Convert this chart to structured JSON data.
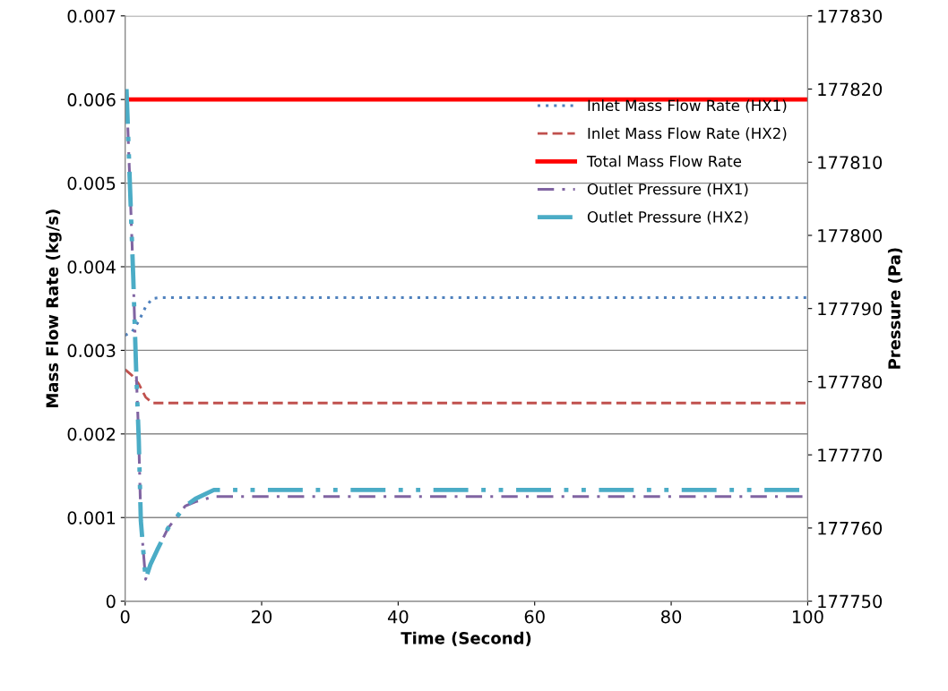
{
  "chart_data": {
    "type": "line",
    "xlabel": "Time (Second)",
    "ylabel": "Mass Flow Rate (kg/s)",
    "y2label": "Pressure (Pa)",
    "xlim": [
      0,
      100
    ],
    "xticks": [
      0,
      20,
      40,
      60,
      80,
      100
    ],
    "ylim": [
      0,
      0.007
    ],
    "yticks": [
      0,
      0.001,
      0.002,
      0.003,
      0.004,
      0.005,
      0.006,
      0.007
    ],
    "y2lim": [
      177750,
      177830
    ],
    "y2ticks": [
      177750,
      177760,
      177770,
      177780,
      177790,
      177800,
      177810,
      177820,
      177830
    ],
    "grid": "y",
    "legend": "top right",
    "marker": "none",
    "series": [
      {
        "name": "Inlet Mass Flow Rate (HX1)",
        "color": "#4f81bd",
        "line_style": "dotted",
        "x": [
          0,
          1,
          2,
          3,
          4,
          5,
          100
        ],
        "values": [
          0.00318,
          0.00322,
          0.00335,
          0.00352,
          0.00362,
          0.00363,
          0.00363
        ]
      },
      {
        "name": "Inlet Mass Flow Rate (HX2)",
        "color": "#c0504d",
        "line_style": "dashed",
        "x": [
          0,
          1,
          2,
          3,
          4,
          100
        ],
        "values": [
          0.00277,
          0.0027,
          0.0026,
          0.00244,
          0.00237,
          0.00237
        ]
      },
      {
        "name": "Total Mass Flow Rate",
        "color": "#ff0000",
        "line_style": "solid",
        "x": [
          0,
          100
        ],
        "values": [
          0.006,
          0.006
        ]
      },
      {
        "name": "Outlet Pressure (HX1)",
        "color": "#8064a2",
        "line_style": "dashdot",
        "axis": "y2",
        "x": [
          0.2,
          0.7,
          1.2,
          1.6,
          2.0,
          2.3,
          3.0,
          3.7,
          4.7,
          6.3,
          8.8,
          10.3,
          13,
          100
        ],
        "values": [
          177819.6,
          177807,
          177794,
          177782,
          177772,
          177761,
          177753,
          177755,
          177757,
          177760,
          177763,
          177763.6,
          177764.3,
          177764.3
        ]
      },
      {
        "name": "Outlet Pressure (HX2)",
        "color": "#4bacc6",
        "line_style": "dashdotdot",
        "axis": "y2",
        "x": [
          0.2,
          0.7,
          1.2,
          1.6,
          2.0,
          2.3,
          3.0,
          3.7,
          4.7,
          6.3,
          8.8,
          10.3,
          13,
          100
        ],
        "values": [
          177820,
          177807,
          177794,
          177782,
          177772,
          177761,
          177753,
          177755,
          177757,
          177760,
          177763,
          177764,
          177765.2,
          177765.2
        ]
      }
    ]
  }
}
